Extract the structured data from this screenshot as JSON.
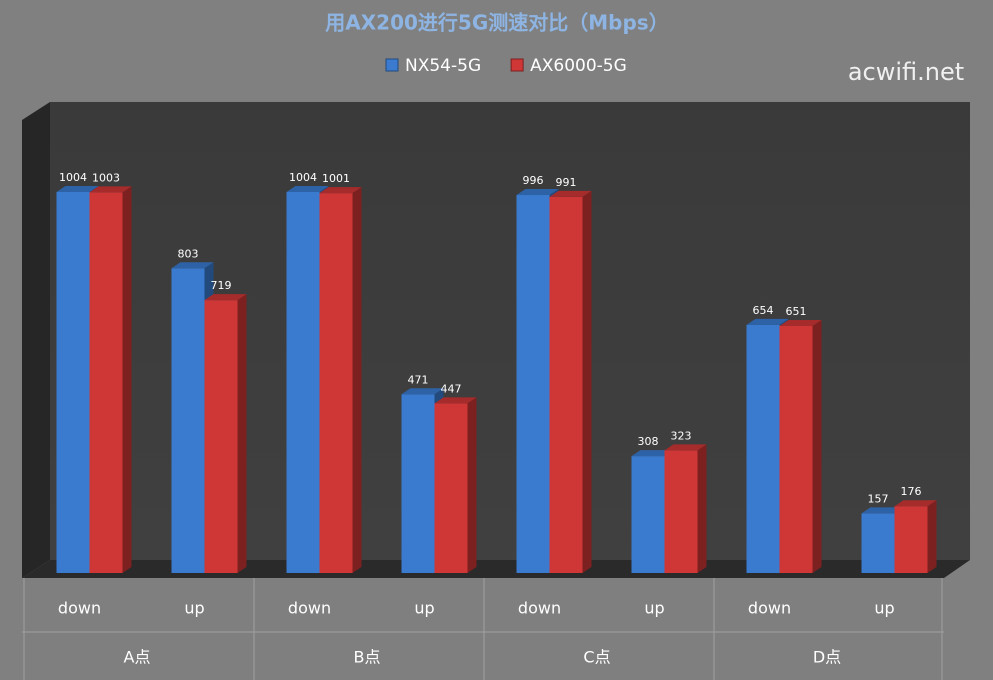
{
  "chart_data": {
    "type": "bar",
    "title": "用AX200进行5G测速对比（Mbps）",
    "watermark": "acwifi.net",
    "categories": [
      "down",
      "up",
      "down",
      "up",
      "down",
      "up",
      "down",
      "up"
    ],
    "groups": [
      "A点",
      "B点",
      "C点",
      "D点"
    ],
    "series": [
      {
        "name": "NX54-5G",
        "color": "#3a7bd0",
        "values": [
          1004,
          803,
          1004,
          471,
          996,
          308,
          654,
          157
        ]
      },
      {
        "name": "AX6000-5G",
        "color": "#cf3636",
        "values": [
          1003,
          719,
          1001,
          447,
          991,
          323,
          651,
          176
        ]
      }
    ]
  }
}
